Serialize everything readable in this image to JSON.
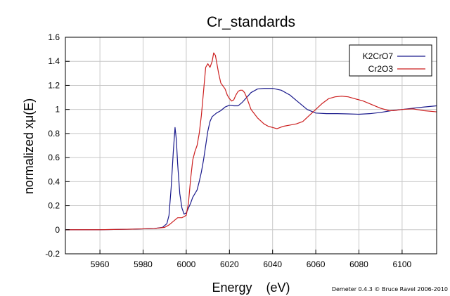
{
  "chart_data": {
    "type": "line",
    "title": "Cr_standards",
    "xlabel": "Energy    (eV)",
    "ylabel": "normalized xμ(E)",
    "xlim": [
      5944,
      6116
    ],
    "ylim": [
      -0.2,
      1.6
    ],
    "xticks": [
      5960,
      5980,
      6000,
      6020,
      6040,
      6060,
      6080,
      6100
    ],
    "yticks": [
      -0.2,
      0,
      0.2,
      0.4,
      0.6,
      0.8,
      1,
      1.2,
      1.4,
      1.6
    ],
    "ytick_labels": [
      "-0.2",
      "0",
      "0.2",
      "0.4",
      "0.6",
      "0.8",
      "1",
      "1.2",
      "1.4",
      "1.6"
    ],
    "grid": true,
    "legend_position": "top-right",
    "credit": "Demeter 0.4.3 © Bruce Ravel 2006-2010",
    "series": [
      {
        "name": "K2CrO7",
        "color": "#1a1a8c",
        "points": [
          [
            5944,
            0.0
          ],
          [
            5960,
            0.0
          ],
          [
            5975,
            0.005
          ],
          [
            5985,
            0.01
          ],
          [
            5989,
            0.02
          ],
          [
            5991,
            0.05
          ],
          [
            5992,
            0.12
          ],
          [
            5993,
            0.35
          ],
          [
            5994,
            0.65
          ],
          [
            5994.8,
            0.85
          ],
          [
            5995.4,
            0.75
          ],
          [
            5996,
            0.55
          ],
          [
            5997,
            0.3
          ],
          [
            5998,
            0.18
          ],
          [
            5999,
            0.13
          ],
          [
            6000,
            0.14
          ],
          [
            6001,
            0.18
          ],
          [
            6002,
            0.22
          ],
          [
            6003,
            0.27
          ],
          [
            6004,
            0.3
          ],
          [
            6005,
            0.33
          ],
          [
            6006,
            0.4
          ],
          [
            6007,
            0.48
          ],
          [
            6008,
            0.58
          ],
          [
            6009,
            0.7
          ],
          [
            6010,
            0.82
          ],
          [
            6011,
            0.9
          ],
          [
            6012,
            0.94
          ],
          [
            6014,
            0.97
          ],
          [
            6016,
            0.99
          ],
          [
            6018,
            1.02
          ],
          [
            6020,
            1.035
          ],
          [
            6022,
            1.03
          ],
          [
            6024,
            1.03
          ],
          [
            6026,
            1.06
          ],
          [
            6028,
            1.1
          ],
          [
            6030,
            1.14
          ],
          [
            6033,
            1.17
          ],
          [
            6036,
            1.175
          ],
          [
            6040,
            1.175
          ],
          [
            6044,
            1.16
          ],
          [
            6048,
            1.12
          ],
          [
            6052,
            1.06
          ],
          [
            6056,
            1.0
          ],
          [
            6060,
            0.97
          ],
          [
            6065,
            0.965
          ],
          [
            6070,
            0.965
          ],
          [
            6075,
            0.963
          ],
          [
            6080,
            0.96
          ],
          [
            6085,
            0.965
          ],
          [
            6090,
            0.975
          ],
          [
            6095,
            0.99
          ],
          [
            6100,
            1.0
          ],
          [
            6105,
            1.01
          ],
          [
            6110,
            1.02
          ],
          [
            6116,
            1.03
          ]
        ]
      },
      {
        "name": "Cr2O3",
        "color": "#cc1f1f",
        "points": [
          [
            5944,
            0.0
          ],
          [
            5960,
            0.0
          ],
          [
            5975,
            0.005
          ],
          [
            5985,
            0.01
          ],
          [
            5990,
            0.02
          ],
          [
            5992,
            0.04
          ],
          [
            5994,
            0.07
          ],
          [
            5996,
            0.1
          ],
          [
            5998,
            0.1
          ],
          [
            6000,
            0.12
          ],
          [
            6001,
            0.22
          ],
          [
            6002,
            0.42
          ],
          [
            6003,
            0.58
          ],
          [
            6004,
            0.65
          ],
          [
            6005,
            0.7
          ],
          [
            6006,
            0.8
          ],
          [
            6007,
            0.95
          ],
          [
            6008,
            1.15
          ],
          [
            6009,
            1.35
          ],
          [
            6010,
            1.38
          ],
          [
            6011,
            1.35
          ],
          [
            6012,
            1.4
          ],
          [
            6012.7,
            1.47
          ],
          [
            6013.5,
            1.45
          ],
          [
            6014,
            1.4
          ],
          [
            6015,
            1.3
          ],
          [
            6016,
            1.22
          ],
          [
            6018,
            1.17
          ],
          [
            6019,
            1.12
          ],
          [
            6020,
            1.09
          ],
          [
            6021,
            1.07
          ],
          [
            6022,
            1.08
          ],
          [
            6023,
            1.12
          ],
          [
            6024,
            1.15
          ],
          [
            6025,
            1.16
          ],
          [
            6026,
            1.16
          ],
          [
            6027,
            1.14
          ],
          [
            6028,
            1.1
          ],
          [
            6030,
            1.0
          ],
          [
            6033,
            0.93
          ],
          [
            6036,
            0.88
          ],
          [
            6038,
            0.86
          ],
          [
            6040,
            0.85
          ],
          [
            6042,
            0.84
          ],
          [
            6045,
            0.86
          ],
          [
            6048,
            0.87
          ],
          [
            6051,
            0.88
          ],
          [
            6054,
            0.9
          ],
          [
            6057,
            0.95
          ],
          [
            6060,
            1.0
          ],
          [
            6063,
            1.05
          ],
          [
            6066,
            1.09
          ],
          [
            6069,
            1.105
          ],
          [
            6072,
            1.11
          ],
          [
            6075,
            1.105
          ],
          [
            6078,
            1.09
          ],
          [
            6082,
            1.07
          ],
          [
            6086,
            1.04
          ],
          [
            6090,
            1.01
          ],
          [
            6094,
            0.99
          ],
          [
            6096,
            0.99
          ],
          [
            6100,
            1.0
          ],
          [
            6105,
            1.005
          ],
          [
            6110,
            0.99
          ],
          [
            6116,
            0.98
          ]
        ]
      }
    ]
  }
}
